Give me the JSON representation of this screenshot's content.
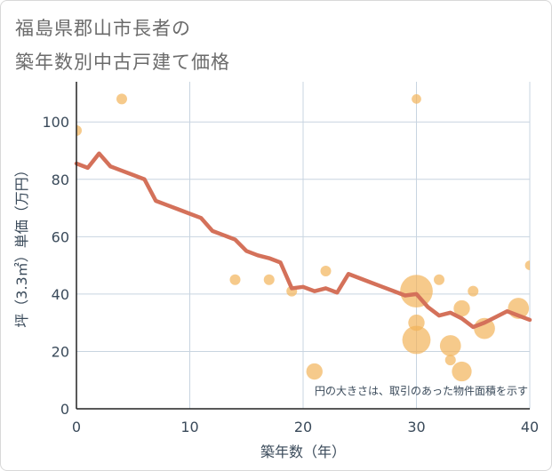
{
  "title_line1": "福島県郡山市長者の",
  "title_line2": "築年数別中古戸建て価格",
  "chart_data": {
    "type": "scatter",
    "xlabel": "築年数（年）",
    "ylabel": "坪（3.3㎡）単価（万円）",
    "xlim": [
      0,
      40
    ],
    "ylim": [
      0,
      114
    ],
    "xticks": [
      "0",
      "10",
      "20",
      "30",
      "40"
    ],
    "yticks": [
      "0",
      "20",
      "40",
      "60",
      "80",
      "100"
    ],
    "grid": true,
    "annotation": "円の大きさは、取引のあった物件面積を示す",
    "colors": {
      "bubble": "#f2b35a",
      "line": "#d4715a",
      "grid": "#c8d4e0"
    },
    "bubbles": [
      {
        "x": 0,
        "y": 97,
        "size": 1
      },
      {
        "x": 4,
        "y": 108,
        "size": 1
      },
      {
        "x": 14,
        "y": 45,
        "size": 1
      },
      {
        "x": 17,
        "y": 45,
        "size": 1
      },
      {
        "x": 19,
        "y": 41,
        "size": 1
      },
      {
        "x": 21,
        "y": 13,
        "size": 1.5
      },
      {
        "x": 22,
        "y": 48,
        "size": 1
      },
      {
        "x": 30,
        "y": 108,
        "size": 0.8
      },
      {
        "x": 30,
        "y": 41,
        "size": 6
      },
      {
        "x": 30,
        "y": 30,
        "size": 1.5
      },
      {
        "x": 30,
        "y": 24,
        "size": 4.5
      },
      {
        "x": 32,
        "y": 45,
        "size": 1
      },
      {
        "x": 33,
        "y": 22,
        "size": 2.5
      },
      {
        "x": 33,
        "y": 17,
        "size": 1
      },
      {
        "x": 34,
        "y": 35,
        "size": 1.5
      },
      {
        "x": 34,
        "y": 13,
        "size": 2.2
      },
      {
        "x": 35,
        "y": 41,
        "size": 1
      },
      {
        "x": 36,
        "y": 28,
        "size": 2.5
      },
      {
        "x": 39,
        "y": 35,
        "size": 2.5
      },
      {
        "x": 40,
        "y": 50,
        "size": 0.8
      }
    ],
    "series": [
      {
        "x": [
          0,
          1,
          2,
          3,
          4,
          5,
          6,
          7,
          8,
          9,
          10,
          11,
          12,
          13,
          14,
          15,
          16,
          17,
          18,
          19,
          20,
          21,
          22,
          23,
          24,
          25,
          26,
          27,
          28,
          29,
          30,
          31,
          32,
          33,
          34,
          35,
          36,
          37,
          38,
          39,
          40
        ],
        "values": [
          85.5,
          84,
          89,
          84.5,
          83,
          81.5,
          80,
          72.5,
          71,
          69.5,
          68,
          66.5,
          62,
          60.5,
          59,
          55,
          53.5,
          52.5,
          51,
          42,
          42.5,
          41,
          42,
          40.5,
          47,
          45.5,
          44,
          42.5,
          41,
          39.5,
          40,
          35.5,
          32.5,
          33.5,
          31.5,
          28.5,
          30,
          32,
          34,
          32.5,
          31
        ]
      }
    ]
  }
}
